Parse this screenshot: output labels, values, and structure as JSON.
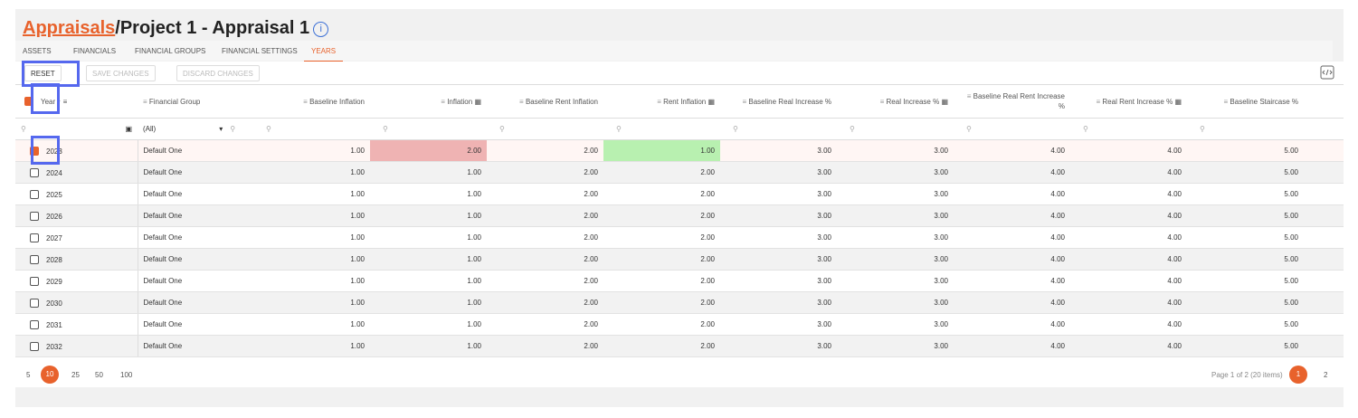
{
  "header": {
    "breadcrumb_link": "Appraisals",
    "separator": "/",
    "title": "Project 1 - Appraisal 1"
  },
  "tabs": {
    "items": [
      "ASSETS",
      "FINANCIALS",
      "FINANCIAL GROUPS",
      "FINANCIAL SETTINGS",
      "YEARS"
    ],
    "active": 4
  },
  "toolbar": {
    "buttons": [
      "RESET",
      "SAVE CHANGES",
      "DISCARD CHANGES"
    ]
  },
  "table": {
    "columns": [
      "Year",
      "Financial Group",
      "Baseline Inflation",
      "Inflation",
      "Baseline Rent Inflation",
      "Rent Inflation",
      "Baseline Real Increase %",
      "Real Increase %",
      "Baseline Real Rent Increase %",
      "Real Rent Increase %",
      "Baseline Staircase %"
    ],
    "filter_value": "(All)",
    "rows": [
      [
        "2023",
        "Default One",
        "1.00",
        "2.00",
        "2.00",
        "1.00",
        "3.00",
        "3.00",
        "4.00",
        "4.00",
        "5.00"
      ],
      [
        "2024",
        "Default One",
        "1.00",
        "1.00",
        "2.00",
        "2.00",
        "3.00",
        "3.00",
        "4.00",
        "4.00",
        "5.00"
      ],
      [
        "2025",
        "Default One",
        "1.00",
        "1.00",
        "2.00",
        "2.00",
        "3.00",
        "3.00",
        "4.00",
        "4.00",
        "5.00"
      ],
      [
        "2026",
        "Default One",
        "1.00",
        "1.00",
        "2.00",
        "2.00",
        "3.00",
        "3.00",
        "4.00",
        "4.00",
        "5.00"
      ],
      [
        "2027",
        "Default One",
        "1.00",
        "1.00",
        "2.00",
        "2.00",
        "3.00",
        "3.00",
        "4.00",
        "4.00",
        "5.00"
      ],
      [
        "2028",
        "Default One",
        "1.00",
        "1.00",
        "2.00",
        "2.00",
        "3.00",
        "3.00",
        "4.00",
        "4.00",
        "5.00"
      ],
      [
        "2029",
        "Default One",
        "1.00",
        "1.00",
        "2.00",
        "2.00",
        "3.00",
        "3.00",
        "4.00",
        "4.00",
        "5.00"
      ],
      [
        "2030",
        "Default One",
        "1.00",
        "1.00",
        "2.00",
        "2.00",
        "3.00",
        "3.00",
        "4.00",
        "4.00",
        "5.00"
      ],
      [
        "2031",
        "Default One",
        "1.00",
        "1.00",
        "2.00",
        "2.00",
        "3.00",
        "3.00",
        "4.00",
        "4.00",
        "5.00"
      ],
      [
        "2032",
        "Default One",
        "1.00",
        "1.00",
        "2.00",
        "2.00",
        "3.00",
        "3.00",
        "4.00",
        "4.00",
        "5.00"
      ]
    ]
  },
  "pager": {
    "sizes": [
      "5",
      "10",
      "25",
      "50",
      "100"
    ],
    "active_size": 1,
    "info": "Page 1 of 2 (20 items)",
    "pages": [
      "1",
      "2"
    ],
    "active_page": 0
  }
}
